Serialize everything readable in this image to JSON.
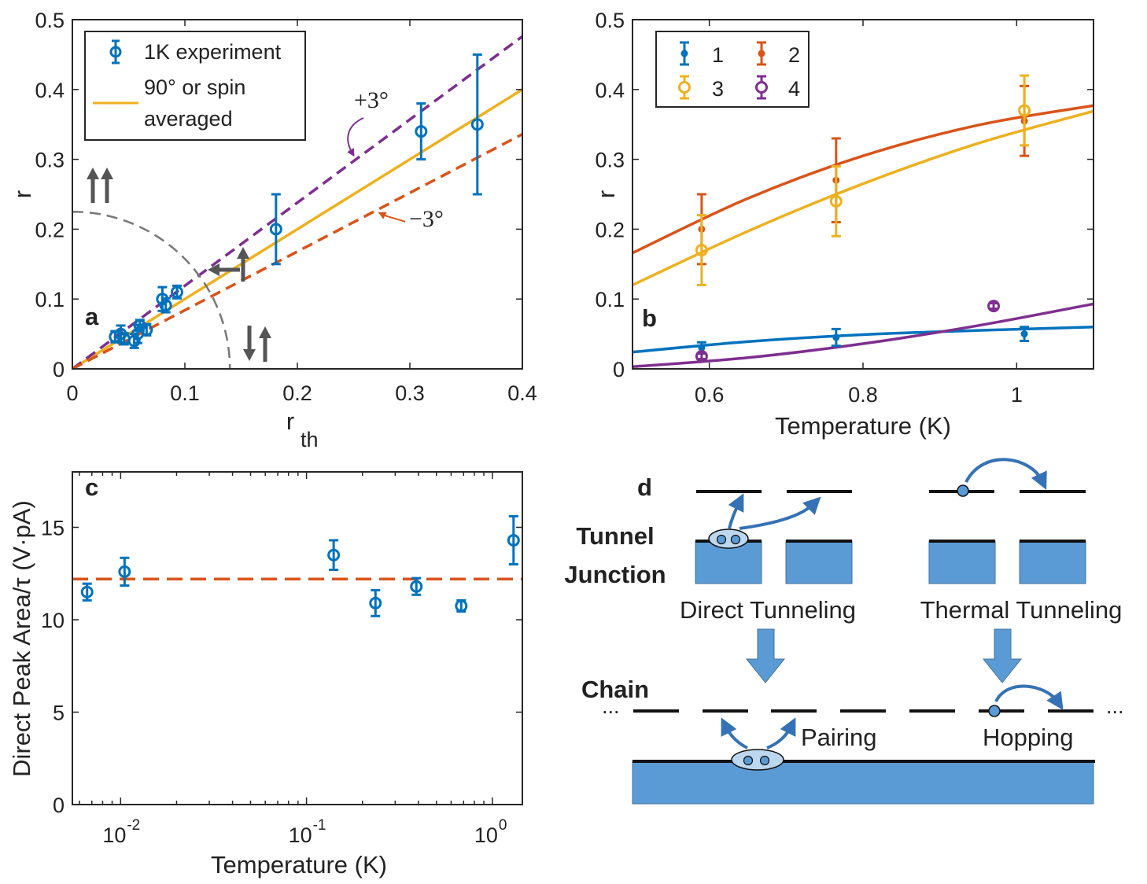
{
  "colors": {
    "blue": "#0072BD",
    "orange": "#D95319",
    "yellow": "#EDB120",
    "purple": "#7E2F8E",
    "gray": "#555555",
    "diagram_blue": "#5B9BD5",
    "arrow_blue": "#3572B5"
  },
  "panels": {
    "a": {
      "label": "a"
    },
    "b": {
      "label": "b"
    },
    "c": {
      "label": "c"
    },
    "d": {
      "label": "d"
    }
  },
  "chart_data": [
    {
      "id": "a",
      "type": "scatter",
      "xlabel": "r",
      "xlabel_sub": "th",
      "ylabel": "r",
      "xlim": [
        0,
        0.4
      ],
      "ylim": [
        0,
        0.5
      ],
      "xticks": [
        0,
        0.1,
        0.2,
        0.3,
        0.4
      ],
      "xtick_labels": [
        "0",
        "0.1",
        "0.2",
        "0.3",
        "0.4"
      ],
      "yticks": [
        0,
        0.1,
        0.2,
        0.3,
        0.4,
        0.5
      ],
      "ytick_labels": [
        "0",
        "0.1",
        "0.2",
        "0.3",
        "0.4",
        "0.5"
      ],
      "legend": [
        "1K experiment",
        "90° or spin",
        "averaged"
      ],
      "points": [
        {
          "x": 0.038,
          "y": 0.046,
          "err": 0.008
        },
        {
          "x": 0.043,
          "y": 0.05,
          "err": 0.012
        },
        {
          "x": 0.046,
          "y": 0.043,
          "err": 0.008
        },
        {
          "x": 0.055,
          "y": 0.04,
          "err": 0.01
        },
        {
          "x": 0.058,
          "y": 0.05,
          "err": 0.013
        },
        {
          "x": 0.06,
          "y": 0.062,
          "err": 0.008
        },
        {
          "x": 0.066,
          "y": 0.056,
          "err": 0.008
        },
        {
          "x": 0.08,
          "y": 0.1,
          "err": 0.017
        },
        {
          "x": 0.083,
          "y": 0.091,
          "err": 0.01
        },
        {
          "x": 0.093,
          "y": 0.11,
          "err": 0.009
        },
        {
          "x": 0.181,
          "y": 0.2,
          "err": 0.05
        },
        {
          "x": 0.31,
          "y": 0.34,
          "err": 0.04
        },
        {
          "x": 0.36,
          "y": 0.35,
          "err": 0.1
        }
      ],
      "lines": [
        {
          "name": "90° or spin averaged",
          "slope": 1.0,
          "style": "solid",
          "color": "yellow"
        },
        {
          "name": "+3°",
          "slope": 1.19,
          "style": "dashed",
          "color": "purple"
        },
        {
          "name": "−3°",
          "slope": 0.84,
          "style": "dashed",
          "color": "orange"
        }
      ],
      "annotations": {
        "plus": "+3°",
        "minus": "−3°"
      },
      "circle_guide": {
        "rx": 0.14,
        "ry": 0.225
      }
    },
    {
      "id": "b",
      "type": "scatter",
      "xlabel": "Temperature (K)",
      "ylabel": "r",
      "xlim": [
        0.5,
        1.1
      ],
      "ylim": [
        0,
        0.5
      ],
      "xticks": [
        0.6,
        0.8,
        1.0
      ],
      "xtick_labels": [
        "0.6",
        "0.8",
        "1"
      ],
      "yticks": [
        0,
        0.1,
        0.2,
        0.3,
        0.4,
        0.5
      ],
      "ytick_labels": [
        "0",
        "0.1",
        "0.2",
        "0.3",
        "0.4",
        "0.5"
      ],
      "legend": [
        "1",
        "2",
        "3",
        "4"
      ],
      "series": [
        {
          "name": "1",
          "color": "blue",
          "marker": "dot",
          "x": [
            0.59,
            0.765,
            1.01
          ],
          "y": [
            0.03,
            0.045,
            0.05
          ],
          "err": [
            0.008,
            0.012,
            0.01
          ],
          "fit": [
            0.024,
            0.039,
            0.049,
            0.055,
            0.06
          ]
        },
        {
          "name": "2",
          "color": "orange",
          "marker": "dot",
          "x": [
            0.59,
            0.765,
            1.01
          ],
          "y": [
            0.2,
            0.27,
            0.355
          ],
          "err": [
            0.05,
            0.06,
            0.05
          ],
          "fit": [
            0.166,
            0.244,
            0.305,
            0.349,
            0.377
          ]
        },
        {
          "name": "3",
          "color": "yellow",
          "marker": "circle",
          "x": [
            0.59,
            0.765,
            1.01
          ],
          "y": [
            0.17,
            0.24,
            0.37
          ],
          "err": [
            0.05,
            0.05,
            0.05
          ],
          "fit": [
            0.12,
            0.197,
            0.265,
            0.323,
            0.369
          ]
        },
        {
          "name": "4",
          "color": "purple",
          "marker": "circle",
          "x": [
            0.59,
            0.97
          ],
          "y": [
            0.018,
            0.09
          ],
          "err": [
            0.004,
            0.004
          ],
          "fit": [
            0.003,
            0.016,
            0.036,
            0.062,
            0.093
          ]
        }
      ],
      "fit_x": [
        0.5,
        0.65,
        0.8,
        0.95,
        1.1
      ]
    },
    {
      "id": "c",
      "type": "scatter",
      "xscale": "log",
      "xlabel": "Temperature (K)",
      "ylabel": "Direct Peak Area/τ (V·pA)",
      "xlim": [
        0.0055,
        1.45
      ],
      "ylim": [
        0,
        18
      ],
      "xtick_labels": [
        "10",
        "10",
        "10"
      ],
      "xtick_exponents": [
        "-2",
        "-1",
        "0"
      ],
      "xtick_values": [
        0.01,
        0.1,
        1
      ],
      "yticks": [
        0,
        5,
        10,
        15
      ],
      "ytick_labels": [
        "0",
        "5",
        "10",
        "15"
      ],
      "points": [
        {
          "x": 0.0066,
          "y": 11.5,
          "err": 0.45
        },
        {
          "x": 0.0105,
          "y": 12.6,
          "err": 0.75
        },
        {
          "x": 0.14,
          "y": 13.5,
          "err": 0.8
        },
        {
          "x": 0.235,
          "y": 10.9,
          "err": 0.7
        },
        {
          "x": 0.39,
          "y": 11.8,
          "err": 0.45
        },
        {
          "x": 0.68,
          "y": 10.75,
          "err": 0.3
        },
        {
          "x": 1.3,
          "y": 14.3,
          "err": 1.3
        }
      ],
      "reference_y": 12.2
    }
  ],
  "diagram": {
    "tunnel_junction_line1": "Tunnel",
    "tunnel_junction_line2": "Junction",
    "direct_tunneling": "Direct Tunneling",
    "thermal_tunneling": "Thermal Tunneling",
    "chain": "Chain",
    "pairing": "Pairing",
    "hopping": "Hopping",
    "ellipsis": "..."
  }
}
